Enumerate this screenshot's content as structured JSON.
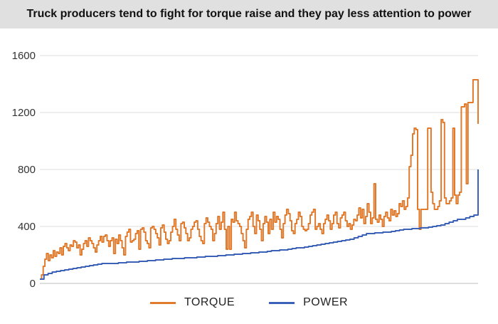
{
  "chart_data": {
    "type": "line",
    "title": "Truck producers tend to fight for torque raise and they pay less attention to power",
    "xlabel": "",
    "ylabel": "",
    "ylim": [
      0,
      1600
    ],
    "yticks": [
      0,
      400,
      800,
      1200,
      1600
    ],
    "grid": true,
    "legend_position": "bottom",
    "series": [
      {
        "name": "TORQUE",
        "color": "#e07b2e",
        "values": [
          30,
          60,
          120,
          170,
          210,
          160,
          200,
          180,
          230,
          190,
          220,
          210,
          250,
          200,
          260,
          280,
          250,
          230,
          270,
          260,
          300,
          290,
          250,
          270,
          200,
          240,
          280,
          300,
          260,
          320,
          300,
          280,
          250,
          220,
          270,
          300,
          330,
          290,
          330,
          340,
          300,
          260,
          300,
          320,
          210,
          310,
          280,
          340,
          300,
          250,
          200,
          330,
          360,
          380,
          290,
          300,
          310,
          350,
          370,
          240,
          380,
          390,
          360,
          300,
          280,
          250,
          390,
          400,
          380,
          350,
          320,
          270,
          390,
          410,
          360,
          310,
          280,
          300,
          360,
          400,
          450,
          380,
          340,
          300,
          420,
          430,
          390,
          350,
          300,
          320,
          380,
          400,
          430,
          440,
          380,
          330,
          300,
          280,
          420,
          460,
          430,
          400,
          380,
          300,
          350,
          420,
          470,
          380,
          430,
          500,
          380,
          240,
          400,
          240,
          450,
          430,
          500,
          440,
          420,
          400,
          350,
          300,
          250,
          380,
          450,
          470,
          500,
          400,
          350,
          480,
          440,
          380,
          300,
          420,
          470,
          430,
          350,
          450,
          380,
          500,
          430,
          470,
          450,
          380,
          320,
          420,
          480,
          520,
          490,
          440,
          370,
          350,
          420,
          450,
          500,
          470,
          400,
          380,
          370,
          380,
          420,
          480,
          500,
          520,
          380,
          400,
          420,
          380,
          350,
          420,
          450,
          480,
          440,
          380,
          420,
          480,
          500,
          420,
          390,
          460,
          480,
          500,
          440,
          400,
          420,
          380,
          410,
          450,
          440,
          480,
          530,
          460,
          520,
          420,
          470,
          560,
          500,
          420,
          460,
          700,
          450,
          430,
          480,
          450,
          400,
          470,
          500,
          460,
          440,
          520,
          480,
          510,
          470,
          490,
          560,
          540,
          580,
          520,
          540,
          600,
          820,
          900,
          1050,
          1090,
          1080,
          520,
          380,
          520,
          520,
          520,
          520,
          1090,
          1090,
          640,
          560,
          520,
          520,
          540,
          580,
          1150,
          1130,
          600,
          560,
          560,
          580,
          600,
          1090,
          620,
          560,
          620,
          640,
          1240,
          1240,
          1260,
          700,
          1270,
          1270,
          1270,
          1430,
          1430,
          1430,
          1120
        ],
        "x_domain": [
          0,
          100
        ]
      },
      {
        "name": "POWER",
        "color": "#3b62b8",
        "values": [
          30,
          60,
          70,
          80,
          85,
          90,
          95,
          100,
          105,
          110,
          115,
          120,
          125,
          130,
          135,
          140,
          140,
          140,
          140,
          145,
          145,
          150,
          150,
          150,
          155,
          155,
          160,
          160,
          165,
          165,
          170,
          170,
          175,
          175,
          175,
          180,
          180,
          180,
          185,
          185,
          190,
          190,
          190,
          195,
          195,
          200,
          200,
          205,
          205,
          210,
          210,
          215,
          215,
          220,
          220,
          225,
          230,
          230,
          235,
          235,
          240,
          245,
          250,
          250,
          255,
          260,
          265,
          270,
          275,
          280,
          285,
          290,
          295,
          300,
          305,
          310,
          320,
          330,
          340,
          350,
          350,
          355,
          355,
          360,
          360,
          365,
          370,
          375,
          380,
          380,
          385,
          385,
          390,
          390,
          395,
          400,
          405,
          410,
          420,
          430,
          440,
          450,
          450,
          460,
          470,
          480,
          800
        ],
        "x_domain": [
          0,
          100
        ]
      }
    ]
  }
}
